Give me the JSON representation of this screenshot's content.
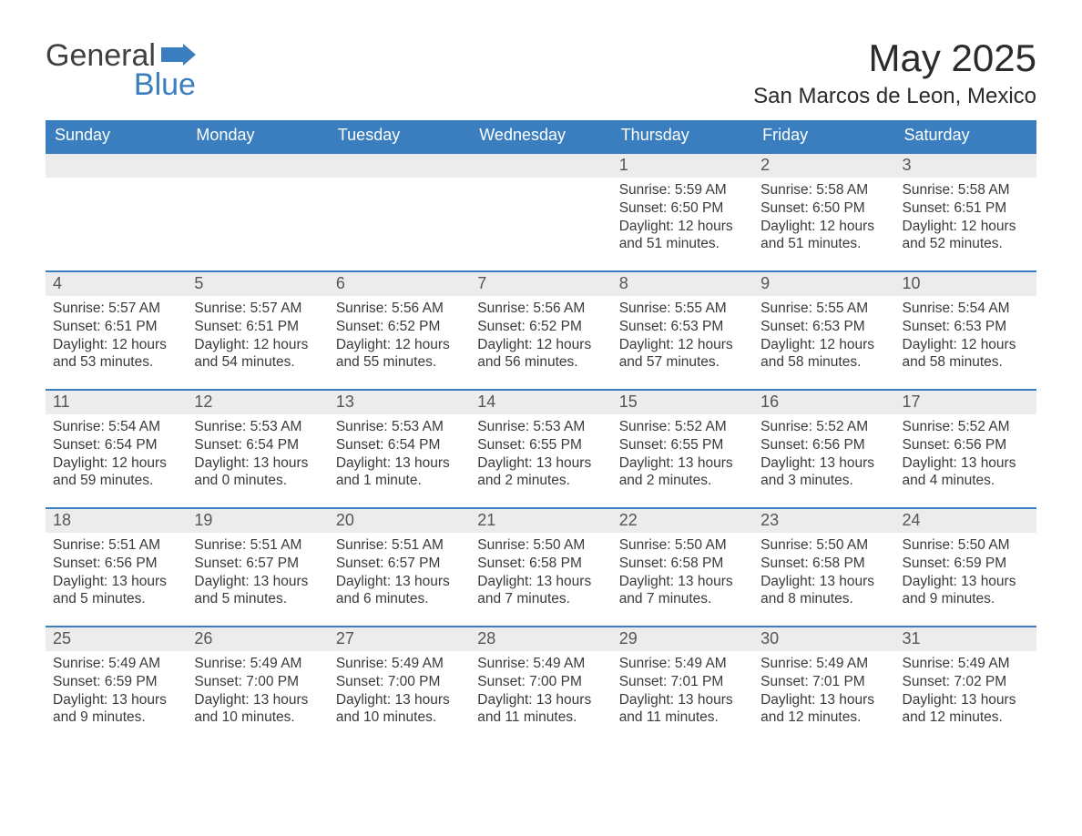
{
  "colors": {
    "header_bg": "#3a7ebf",
    "header_text": "#ffffff",
    "daynum_bg": "#ececec",
    "daynum_text": "#555555",
    "body_text": "#3a3a3a",
    "page_bg": "#ffffff",
    "row_border": "#3a7ebf",
    "logo_gray": "#404040",
    "logo_blue": "#3a7ebf"
  },
  "logo": {
    "line1": "General",
    "line2": "Blue"
  },
  "title": "May 2025",
  "subtitle": "San Marcos de Leon, Mexico",
  "days_of_week": [
    "Sunday",
    "Monday",
    "Tuesday",
    "Wednesday",
    "Thursday",
    "Friday",
    "Saturday"
  ],
  "labels": {
    "sunrise": "Sunrise:",
    "sunset": "Sunset:",
    "daylight": "Daylight:"
  },
  "weeks": [
    [
      {
        "empty": true
      },
      {
        "empty": true
      },
      {
        "empty": true
      },
      {
        "empty": true
      },
      {
        "day": "1",
        "sunrise": "5:59 AM",
        "sunset": "6:50 PM",
        "daylight": "12 hours and 51 minutes."
      },
      {
        "day": "2",
        "sunrise": "5:58 AM",
        "sunset": "6:50 PM",
        "daylight": "12 hours and 51 minutes."
      },
      {
        "day": "3",
        "sunrise": "5:58 AM",
        "sunset": "6:51 PM",
        "daylight": "12 hours and 52 minutes."
      }
    ],
    [
      {
        "day": "4",
        "sunrise": "5:57 AM",
        "sunset": "6:51 PM",
        "daylight": "12 hours and 53 minutes."
      },
      {
        "day": "5",
        "sunrise": "5:57 AM",
        "sunset": "6:51 PM",
        "daylight": "12 hours and 54 minutes."
      },
      {
        "day": "6",
        "sunrise": "5:56 AM",
        "sunset": "6:52 PM",
        "daylight": "12 hours and 55 minutes."
      },
      {
        "day": "7",
        "sunrise": "5:56 AM",
        "sunset": "6:52 PM",
        "daylight": "12 hours and 56 minutes."
      },
      {
        "day": "8",
        "sunrise": "5:55 AM",
        "sunset": "6:53 PM",
        "daylight": "12 hours and 57 minutes."
      },
      {
        "day": "9",
        "sunrise": "5:55 AM",
        "sunset": "6:53 PM",
        "daylight": "12 hours and 58 minutes."
      },
      {
        "day": "10",
        "sunrise": "5:54 AM",
        "sunset": "6:53 PM",
        "daylight": "12 hours and 58 minutes."
      }
    ],
    [
      {
        "day": "11",
        "sunrise": "5:54 AM",
        "sunset": "6:54 PM",
        "daylight": "12 hours and 59 minutes."
      },
      {
        "day": "12",
        "sunrise": "5:53 AM",
        "sunset": "6:54 PM",
        "daylight": "13 hours and 0 minutes."
      },
      {
        "day": "13",
        "sunrise": "5:53 AM",
        "sunset": "6:54 PM",
        "daylight": "13 hours and 1 minute."
      },
      {
        "day": "14",
        "sunrise": "5:53 AM",
        "sunset": "6:55 PM",
        "daylight": "13 hours and 2 minutes."
      },
      {
        "day": "15",
        "sunrise": "5:52 AM",
        "sunset": "6:55 PM",
        "daylight": "13 hours and 2 minutes."
      },
      {
        "day": "16",
        "sunrise": "5:52 AM",
        "sunset": "6:56 PM",
        "daylight": "13 hours and 3 minutes."
      },
      {
        "day": "17",
        "sunrise": "5:52 AM",
        "sunset": "6:56 PM",
        "daylight": "13 hours and 4 minutes."
      }
    ],
    [
      {
        "day": "18",
        "sunrise": "5:51 AM",
        "sunset": "6:56 PM",
        "daylight": "13 hours and 5 minutes."
      },
      {
        "day": "19",
        "sunrise": "5:51 AM",
        "sunset": "6:57 PM",
        "daylight": "13 hours and 5 minutes."
      },
      {
        "day": "20",
        "sunrise": "5:51 AM",
        "sunset": "6:57 PM",
        "daylight": "13 hours and 6 minutes."
      },
      {
        "day": "21",
        "sunrise": "5:50 AM",
        "sunset": "6:58 PM",
        "daylight": "13 hours and 7 minutes."
      },
      {
        "day": "22",
        "sunrise": "5:50 AM",
        "sunset": "6:58 PM",
        "daylight": "13 hours and 7 minutes."
      },
      {
        "day": "23",
        "sunrise": "5:50 AM",
        "sunset": "6:58 PM",
        "daylight": "13 hours and 8 minutes."
      },
      {
        "day": "24",
        "sunrise": "5:50 AM",
        "sunset": "6:59 PM",
        "daylight": "13 hours and 9 minutes."
      }
    ],
    [
      {
        "day": "25",
        "sunrise": "5:49 AM",
        "sunset": "6:59 PM",
        "daylight": "13 hours and 9 minutes."
      },
      {
        "day": "26",
        "sunrise": "5:49 AM",
        "sunset": "7:00 PM",
        "daylight": "13 hours and 10 minutes."
      },
      {
        "day": "27",
        "sunrise": "5:49 AM",
        "sunset": "7:00 PM",
        "daylight": "13 hours and 10 minutes."
      },
      {
        "day": "28",
        "sunrise": "5:49 AM",
        "sunset": "7:00 PM",
        "daylight": "13 hours and 11 minutes."
      },
      {
        "day": "29",
        "sunrise": "5:49 AM",
        "sunset": "7:01 PM",
        "daylight": "13 hours and 11 minutes."
      },
      {
        "day": "30",
        "sunrise": "5:49 AM",
        "sunset": "7:01 PM",
        "daylight": "13 hours and 12 minutes."
      },
      {
        "day": "31",
        "sunrise": "5:49 AM",
        "sunset": "7:02 PM",
        "daylight": "13 hours and 12 minutes."
      }
    ]
  ]
}
